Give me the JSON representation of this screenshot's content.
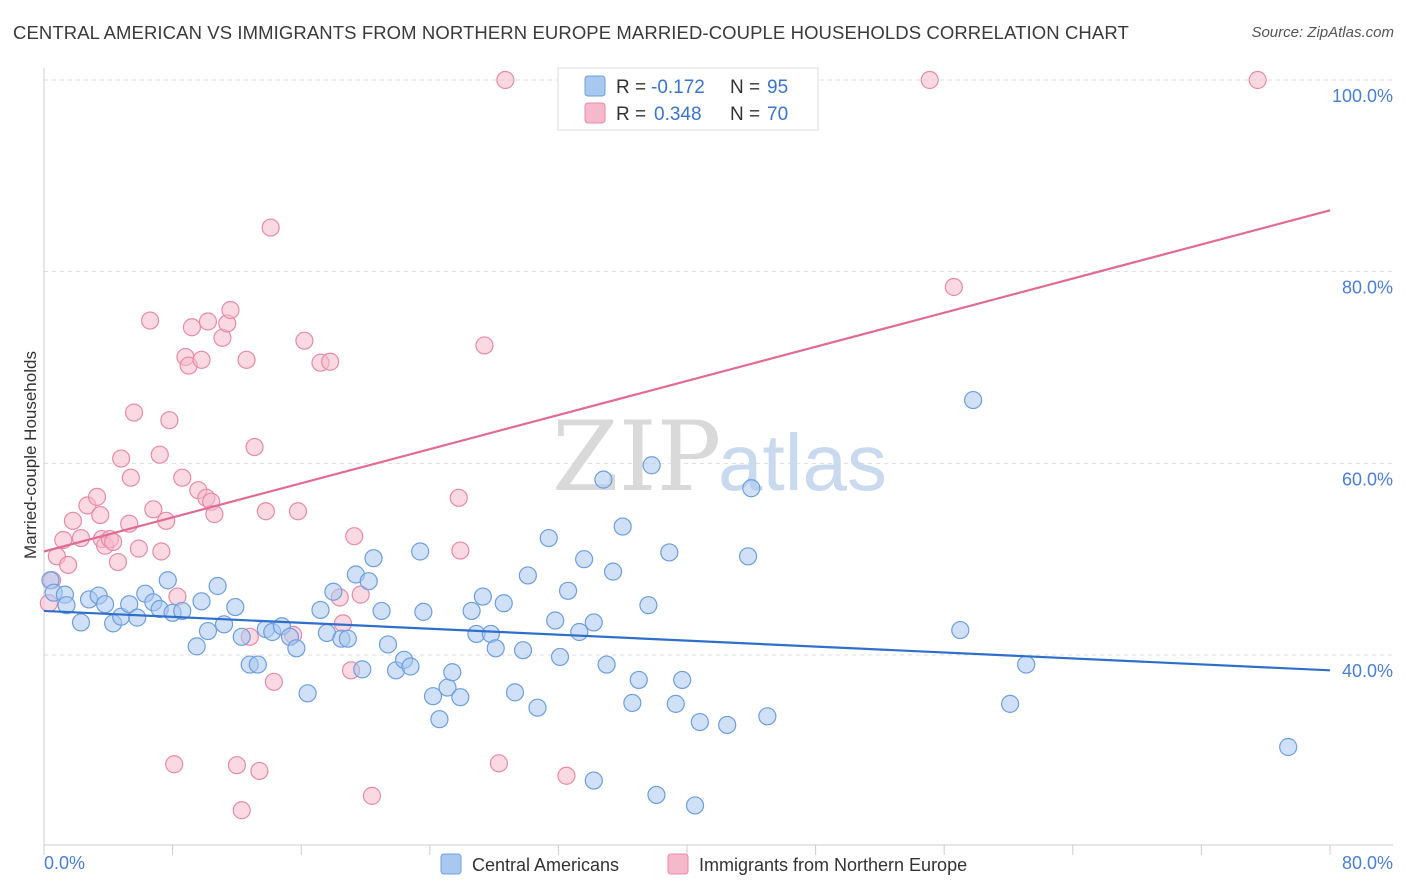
{
  "title": "CENTRAL AMERICAN VS IMMIGRANTS FROM NORTHERN EUROPE MARRIED-COUPLE HOUSEHOLDS CORRELATION CHART",
  "source": "Source: ZipAtlas.com",
  "watermark": {
    "zip": "ZIP",
    "atlas": "atlas"
  },
  "colors": {
    "blue_fill": "#a9c8f0",
    "blue_stroke": "#6c9ee0",
    "blue_line": "#2f6fcc",
    "pink_fill": "#f6b9cc",
    "pink_stroke": "#e88aa8",
    "pink_line": "#e06c96",
    "grid": "#dddddd",
    "axis_text": "#4a7fd4"
  },
  "legend": {
    "r_label": "R =",
    "n_label": "N =",
    "blue": {
      "r": "-0.172",
      "n": "95"
    },
    "pink": {
      "r": "0.348",
      "n": "70"
    }
  },
  "chart_data": {
    "type": "scatter",
    "xlabel": "",
    "ylabel": "Married-couple Households",
    "xlim": [
      0,
      80
    ],
    "ylim": [
      21,
      102
    ],
    "x_tick_labels": {
      "min": "0.0%",
      "max": "80.0%"
    },
    "y_ticks": [
      {
        "value": 40,
        "label": "40.0%"
      },
      {
        "value": 60,
        "label": "60.0%"
      },
      {
        "value": 80,
        "label": "80.0%"
      },
      {
        "value": 100,
        "label": "100.0%"
      }
    ],
    "grid": true,
    "legend_position": "top-center",
    "series": [
      {
        "name": "Central Americans",
        "color": "#a9c8f0",
        "trend": {
          "x": [
            0,
            80
          ],
          "y": [
            44.6,
            38.4
          ]
        },
        "points": [
          [
            0.4,
            47.8
          ],
          [
            0.6,
            46.5
          ],
          [
            1.3,
            46.3
          ],
          [
            1.4,
            45.2
          ],
          [
            2.3,
            43.4
          ],
          [
            2.8,
            45.8
          ],
          [
            3.4,
            46.2
          ],
          [
            3.8,
            45.3
          ],
          [
            4.3,
            43.3
          ],
          [
            4.8,
            44.0
          ],
          [
            5.3,
            45.3
          ],
          [
            5.8,
            43.9
          ],
          [
            6.3,
            46.4
          ],
          [
            6.8,
            45.5
          ],
          [
            7.2,
            44.8
          ],
          [
            7.7,
            47.8
          ],
          [
            8.0,
            44.4
          ],
          [
            8.6,
            44.6
          ],
          [
            9.5,
            40.9
          ],
          [
            9.8,
            45.6
          ],
          [
            10.2,
            42.5
          ],
          [
            10.8,
            47.2
          ],
          [
            11.2,
            43.2
          ],
          [
            11.9,
            45.0
          ],
          [
            12.3,
            41.9
          ],
          [
            12.8,
            39.0
          ],
          [
            13.3,
            39.0
          ],
          [
            13.8,
            42.7
          ],
          [
            14.2,
            42.4
          ],
          [
            14.8,
            43.0
          ],
          [
            15.3,
            41.9
          ],
          [
            15.7,
            40.7
          ],
          [
            16.4,
            36.0
          ],
          [
            17.2,
            44.7
          ],
          [
            17.6,
            42.3
          ],
          [
            18.0,
            46.6
          ],
          [
            18.5,
            41.7
          ],
          [
            18.9,
            41.7
          ],
          [
            19.4,
            48.4
          ],
          [
            19.8,
            38.5
          ],
          [
            20.2,
            47.7
          ],
          [
            20.5,
            50.1
          ],
          [
            21.0,
            44.6
          ],
          [
            21.4,
            41.1
          ],
          [
            21.9,
            38.4
          ],
          [
            22.4,
            39.5
          ],
          [
            22.8,
            38.8
          ],
          [
            23.4,
            50.8
          ],
          [
            23.6,
            44.5
          ],
          [
            24.2,
            35.7
          ],
          [
            24.6,
            33.3
          ],
          [
            25.1,
            36.6
          ],
          [
            25.4,
            38.2
          ],
          [
            25.9,
            35.6
          ],
          [
            26.6,
            44.6
          ],
          [
            26.9,
            42.2
          ],
          [
            27.3,
            46.1
          ],
          [
            27.8,
            42.2
          ],
          [
            28.1,
            40.7
          ],
          [
            28.6,
            45.4
          ],
          [
            29.3,
            36.1
          ],
          [
            29.8,
            40.5
          ],
          [
            30.1,
            48.3
          ],
          [
            30.7,
            34.5
          ],
          [
            31.4,
            52.2
          ],
          [
            31.8,
            43.6
          ],
          [
            32.1,
            39.8
          ],
          [
            32.6,
            46.7
          ],
          [
            33.3,
            42.4
          ],
          [
            33.6,
            50.0
          ],
          [
            34.2,
            43.4
          ],
          [
            34.8,
            58.3
          ],
          [
            35.0,
            39.0
          ],
          [
            35.4,
            48.7
          ],
          [
            36.0,
            53.4
          ],
          [
            36.6,
            35.0
          ],
          [
            37.0,
            37.4
          ],
          [
            37.6,
            45.2
          ],
          [
            37.8,
            59.8
          ],
          [
            38.1,
            25.4
          ],
          [
            38.9,
            50.7
          ],
          [
            39.3,
            34.9
          ],
          [
            39.7,
            37.4
          ],
          [
            40.5,
            24.3
          ],
          [
            40.8,
            33.0
          ],
          [
            42.5,
            32.7
          ],
          [
            44.0,
            57.4
          ],
          [
            43.8,
            50.3
          ],
          [
            45.0,
            33.6
          ],
          [
            57.0,
            42.6
          ],
          [
            57.8,
            66.6
          ],
          [
            60.1,
            34.9
          ],
          [
            61.1,
            39.0
          ],
          [
            77.4,
            30.4
          ],
          [
            34.2,
            26.9
          ]
        ]
      },
      {
        "name": "Immigrants from Northern Europe",
        "color": "#f6b9cc",
        "trend": {
          "x": [
            0,
            80
          ],
          "y": [
            50.8,
            86.4
          ]
        },
        "points": [
          [
            0.3,
            45.4
          ],
          [
            0.5,
            47.8
          ],
          [
            0.8,
            50.3
          ],
          [
            1.2,
            52.0
          ],
          [
            1.5,
            49.4
          ],
          [
            1.8,
            54.0
          ],
          [
            2.3,
            52.2
          ],
          [
            2.7,
            55.6
          ],
          [
            3.3,
            56.5
          ],
          [
            3.5,
            54.6
          ],
          [
            3.6,
            52.1
          ],
          [
            3.8,
            51.4
          ],
          [
            4.1,
            52.1
          ],
          [
            4.3,
            51.8
          ],
          [
            4.6,
            49.7
          ],
          [
            4.8,
            60.5
          ],
          [
            5.3,
            53.7
          ],
          [
            5.4,
            58.5
          ],
          [
            5.6,
            65.3
          ],
          [
            5.9,
            51.1
          ],
          [
            6.6,
            74.9
          ],
          [
            6.8,
            55.2
          ],
          [
            7.2,
            60.9
          ],
          [
            7.3,
            50.8
          ],
          [
            7.6,
            54.0
          ],
          [
            7.8,
            64.5
          ],
          [
            8.1,
            28.6
          ],
          [
            8.3,
            46.1
          ],
          [
            8.6,
            58.5
          ],
          [
            8.8,
            71.1
          ],
          [
            9.0,
            70.2
          ],
          [
            9.2,
            74.2
          ],
          [
            9.6,
            57.2
          ],
          [
            9.8,
            70.8
          ],
          [
            10.1,
            56.4
          ],
          [
            10.2,
            74.8
          ],
          [
            10.4,
            56.0
          ],
          [
            10.6,
            54.7
          ],
          [
            11.1,
            73.1
          ],
          [
            11.4,
            74.6
          ],
          [
            11.6,
            76.0
          ],
          [
            12.0,
            28.5
          ],
          [
            12.3,
            23.8
          ],
          [
            12.6,
            70.8
          ],
          [
            12.8,
            41.9
          ],
          [
            13.1,
            61.7
          ],
          [
            13.4,
            27.9
          ],
          [
            13.8,
            55.0
          ],
          [
            14.1,
            84.6
          ],
          [
            14.3,
            37.2
          ],
          [
            15.5,
            42.1
          ],
          [
            15.8,
            55.0
          ],
          [
            16.2,
            72.8
          ],
          [
            17.2,
            70.5
          ],
          [
            17.8,
            70.6
          ],
          [
            18.4,
            46.0
          ],
          [
            18.6,
            43.3
          ],
          [
            19.1,
            38.4
          ],
          [
            19.3,
            52.4
          ],
          [
            19.7,
            46.3
          ],
          [
            20.4,
            25.3
          ],
          [
            25.9,
            50.9
          ],
          [
            25.8,
            56.4
          ],
          [
            27.4,
            72.3
          ],
          [
            28.3,
            28.7
          ],
          [
            28.7,
            100.0
          ],
          [
            32.5,
            27.4
          ],
          [
            55.1,
            100.0
          ],
          [
            56.6,
            78.4
          ],
          [
            75.5,
            100.0
          ]
        ]
      }
    ]
  }
}
